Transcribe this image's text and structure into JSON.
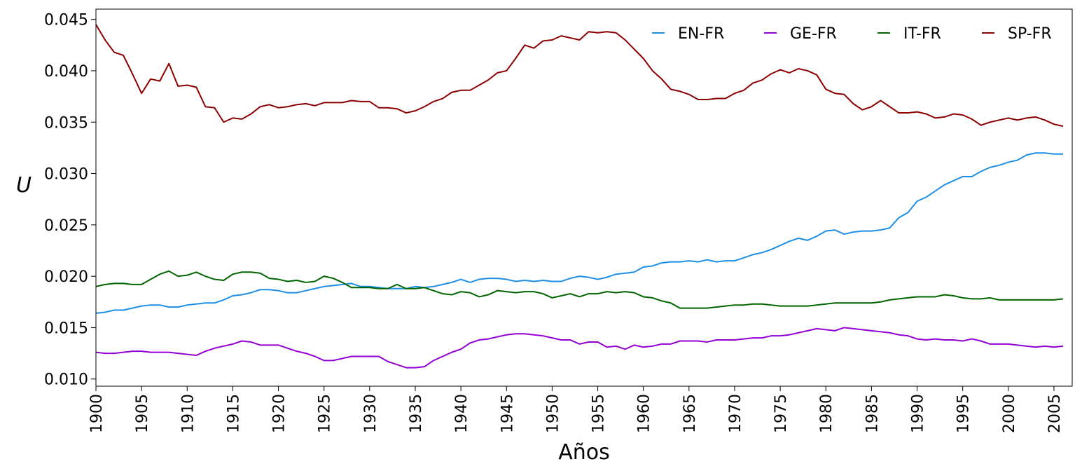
{
  "chart_data": {
    "type": "line",
    "title": "",
    "xlabel": "Años",
    "ylabel": "U",
    "xlim": [
      1900,
      2007
    ],
    "ylim": [
      0.0093,
      0.046
    ],
    "grid": false,
    "legend_position": "top-right",
    "x_ticks": [
      "1900",
      "1905",
      "1910",
      "1915",
      "1920",
      "1925",
      "1930",
      "1935",
      "1940",
      "1945",
      "1950",
      "1955",
      "1960",
      "1965",
      "1970",
      "1975",
      "1980",
      "1985",
      "1990",
      "1995",
      "2000",
      "2005"
    ],
    "y_ticks": [
      "0.010",
      "0.015",
      "0.020",
      "0.025",
      "0.030",
      "0.035",
      "0.040",
      "0.045"
    ],
    "x_start": 1900,
    "series": [
      {
        "name": "EN-FR",
        "color": "#1f8fe6",
        "values": [
          0.0164,
          0.0165,
          0.0167,
          0.0167,
          0.0169,
          0.0171,
          0.0172,
          0.0172,
          0.017,
          0.017,
          0.0172,
          0.0173,
          0.0174,
          0.0174,
          0.0177,
          0.0181,
          0.0182,
          0.0184,
          0.0187,
          0.0187,
          0.0186,
          0.0184,
          0.0184,
          0.0186,
          0.0188,
          0.019,
          0.0191,
          0.0192,
          0.0193,
          0.019,
          0.019,
          0.0189,
          0.0188,
          0.0188,
          0.0188,
          0.019,
          0.0189,
          0.019,
          0.0192,
          0.0194,
          0.0197,
          0.0194,
          0.0197,
          0.0198,
          0.0198,
          0.0197,
          0.0195,
          0.0196,
          0.0195,
          0.0196,
          0.0195,
          0.0195,
          0.0198,
          0.02,
          0.0199,
          0.0197,
          0.0199,
          0.0202,
          0.0203,
          0.0204,
          0.0209,
          0.021,
          0.0213,
          0.0214,
          0.0214,
          0.0215,
          0.0214,
          0.0216,
          0.0214,
          0.0215,
          0.0215,
          0.0218,
          0.0221,
          0.0223,
          0.0226,
          0.023,
          0.0234,
          0.0237,
          0.0235,
          0.0239,
          0.0244,
          0.0245,
          0.0241,
          0.0243,
          0.0244,
          0.0244,
          0.0245,
          0.0247,
          0.0257,
          0.0262,
          0.0273,
          0.0277,
          0.0283,
          0.0289,
          0.0293,
          0.0297,
          0.0297,
          0.0302,
          0.0306,
          0.0308,
          0.0311,
          0.0313,
          0.0318,
          0.032,
          0.032,
          0.0319,
          0.0319
        ]
      },
      {
        "name": "GE-FR",
        "color": "#9400d3",
        "values": [
          0.0126,
          0.0125,
          0.0125,
          0.0126,
          0.0127,
          0.0127,
          0.0126,
          0.0126,
          0.0126,
          0.0125,
          0.0124,
          0.0123,
          0.0127,
          0.013,
          0.0132,
          0.0134,
          0.0137,
          0.0136,
          0.0133,
          0.0133,
          0.0133,
          0.013,
          0.0127,
          0.0125,
          0.0122,
          0.0118,
          0.0118,
          0.012,
          0.0122,
          0.0122,
          0.0122,
          0.0122,
          0.0117,
          0.0114,
          0.0111,
          0.0111,
          0.0112,
          0.0118,
          0.0122,
          0.0126,
          0.0129,
          0.0135,
          0.0138,
          0.0139,
          0.0141,
          0.0143,
          0.0144,
          0.0144,
          0.0143,
          0.0142,
          0.014,
          0.0138,
          0.0138,
          0.0134,
          0.0136,
          0.0136,
          0.0131,
          0.0132,
          0.0129,
          0.0133,
          0.0131,
          0.0132,
          0.0134,
          0.0134,
          0.0137,
          0.0137,
          0.0137,
          0.0136,
          0.0138,
          0.0138,
          0.0138,
          0.0139,
          0.014,
          0.014,
          0.0142,
          0.0142,
          0.0143,
          0.0145,
          0.0147,
          0.0149,
          0.0148,
          0.0147,
          0.015,
          0.0149,
          0.0148,
          0.0147,
          0.0146,
          0.0145,
          0.0143,
          0.0142,
          0.0139,
          0.0138,
          0.0139,
          0.0138,
          0.0138,
          0.0137,
          0.0139,
          0.0137,
          0.0134,
          0.0134,
          0.0134,
          0.0133,
          0.0132,
          0.0131,
          0.0132,
          0.0131,
          0.0132
        ]
      },
      {
        "name": "IT-FR",
        "color": "#006400",
        "values": [
          0.019,
          0.0192,
          0.0193,
          0.0193,
          0.0192,
          0.0192,
          0.0197,
          0.0202,
          0.0205,
          0.02,
          0.0201,
          0.0204,
          0.02,
          0.0197,
          0.0196,
          0.0202,
          0.0204,
          0.0204,
          0.0203,
          0.0198,
          0.0197,
          0.0195,
          0.0196,
          0.0194,
          0.0195,
          0.02,
          0.0198,
          0.0194,
          0.0189,
          0.0189,
          0.0189,
          0.0188,
          0.0188,
          0.0192,
          0.0188,
          0.0188,
          0.0189,
          0.0186,
          0.0183,
          0.0182,
          0.0185,
          0.0184,
          0.018,
          0.0182,
          0.0186,
          0.0185,
          0.0184,
          0.0185,
          0.0185,
          0.0183,
          0.0179,
          0.0181,
          0.0183,
          0.018,
          0.0183,
          0.0183,
          0.0185,
          0.0184,
          0.0185,
          0.0184,
          0.018,
          0.0179,
          0.0176,
          0.0174,
          0.0169,
          0.0169,
          0.0169,
          0.0169,
          0.017,
          0.0171,
          0.0172,
          0.0172,
          0.0173,
          0.0173,
          0.0172,
          0.0171,
          0.0171,
          0.0171,
          0.0171,
          0.0172,
          0.0173,
          0.0174,
          0.0174,
          0.0174,
          0.0174,
          0.0174,
          0.0175,
          0.0177,
          0.0178,
          0.0179,
          0.018,
          0.018,
          0.018,
          0.0182,
          0.0181,
          0.0179,
          0.0178,
          0.0178,
          0.0179,
          0.0177,
          0.0177,
          0.0177,
          0.0177,
          0.0177,
          0.0177,
          0.0177,
          0.0178
        ]
      },
      {
        "name": "SP-FR",
        "color": "#8b0000",
        "values": [
          0.0445,
          0.043,
          0.0418,
          0.0415,
          0.0397,
          0.0378,
          0.0392,
          0.039,
          0.0407,
          0.0385,
          0.0386,
          0.0384,
          0.0365,
          0.0364,
          0.035,
          0.0354,
          0.0353,
          0.0358,
          0.0365,
          0.0367,
          0.0364,
          0.0365,
          0.0367,
          0.0368,
          0.0366,
          0.0369,
          0.0369,
          0.0369,
          0.0371,
          0.037,
          0.037,
          0.0364,
          0.0364,
          0.0363,
          0.0359,
          0.0361,
          0.0365,
          0.037,
          0.0373,
          0.0379,
          0.0381,
          0.0381,
          0.0386,
          0.0391,
          0.0398,
          0.04,
          0.0412,
          0.0425,
          0.0422,
          0.0429,
          0.043,
          0.0434,
          0.0432,
          0.043,
          0.0438,
          0.0437,
          0.0438,
          0.0437,
          0.043,
          0.0421,
          0.0412,
          0.04,
          0.0392,
          0.0382,
          0.038,
          0.0377,
          0.0372,
          0.0372,
          0.0373,
          0.0373,
          0.0378,
          0.0381,
          0.0388,
          0.0391,
          0.0397,
          0.0401,
          0.0398,
          0.0402,
          0.04,
          0.0396,
          0.0382,
          0.0378,
          0.0377,
          0.0368,
          0.0362,
          0.0365,
          0.0371,
          0.0365,
          0.0359,
          0.0359,
          0.036,
          0.0358,
          0.0354,
          0.0355,
          0.0358,
          0.0357,
          0.0353,
          0.0347,
          0.035,
          0.0352,
          0.0354,
          0.0352,
          0.0354,
          0.0355,
          0.0352,
          0.0348,
          0.0346
        ]
      }
    ]
  }
}
